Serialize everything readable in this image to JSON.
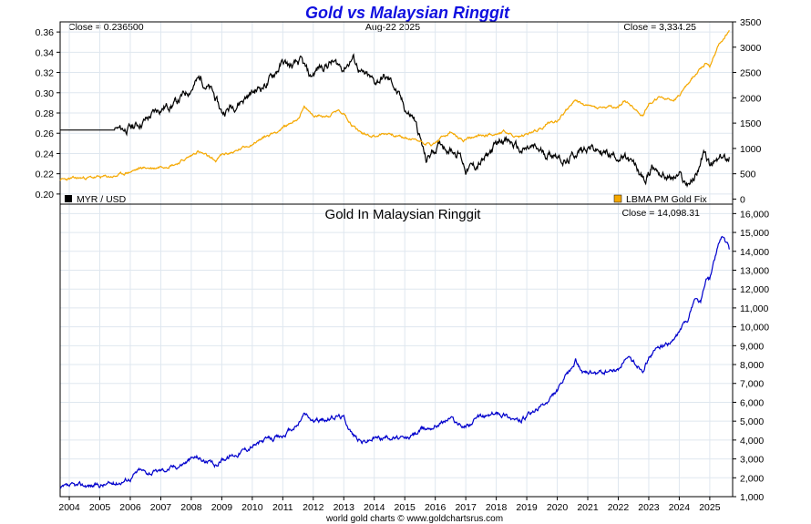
{
  "chart_data": [
    {
      "type": "line",
      "title": "Gold vs Malaysian Ringgit",
      "date_label": "Aug-22  2025",
      "left_close": "Close = 0.236500",
      "right_close": "Close = 3,334.25",
      "left_axis": {
        "ylim": [
          0.19,
          0.37
        ],
        "ticks": [
          "0.20",
          "0.22",
          "0.24",
          "0.26",
          "0.28",
          "0.30",
          "0.32",
          "0.34",
          "0.36"
        ]
      },
      "right_axis": {
        "ylim": [
          -100,
          3500
        ],
        "ticks": [
          "0",
          "500",
          "1000",
          "1500",
          "2000",
          "2500",
          "3000",
          "3500"
        ]
      },
      "grid": true,
      "series": [
        {
          "name": "MYR / USD",
          "axis": "left",
          "color": "#000000",
          "x": [
            2003.7,
            2005.5,
            2005.6,
            2006.0,
            2006.5,
            2007.0,
            2007.5,
            2008.0,
            2008.3,
            2008.7,
            2009.0,
            2009.5,
            2010.0,
            2010.5,
            2011.0,
            2011.3,
            2011.6,
            2011.9,
            2012.2,
            2012.6,
            2013.0,
            2013.3,
            2013.6,
            2014.0,
            2014.3,
            2014.6,
            2014.9,
            2015.1,
            2015.3,
            2015.5,
            2015.7,
            2015.9,
            2016.2,
            2016.5,
            2016.8,
            2017.0,
            2017.3,
            2017.6,
            2017.9,
            2018.2,
            2018.5,
            2018.8,
            2019.2,
            2019.6,
            2020.0,
            2020.3,
            2020.6,
            2021.0,
            2021.3,
            2021.6,
            2022.0,
            2022.3,
            2022.6,
            2022.9,
            2023.1,
            2023.4,
            2023.7,
            2024.0,
            2024.2,
            2024.5,
            2024.8,
            2025.0,
            2025.3,
            2025.64
          ],
          "y": [
            0.2632,
            0.2632,
            0.263,
            0.265,
            0.273,
            0.285,
            0.29,
            0.305,
            0.315,
            0.3,
            0.28,
            0.29,
            0.3,
            0.31,
            0.33,
            0.325,
            0.33,
            0.315,
            0.325,
            0.33,
            0.325,
            0.335,
            0.318,
            0.31,
            0.315,
            0.31,
            0.29,
            0.28,
            0.275,
            0.255,
            0.232,
            0.242,
            0.25,
            0.245,
            0.24,
            0.225,
            0.227,
            0.233,
            0.245,
            0.256,
            0.25,
            0.242,
            0.245,
            0.24,
            0.24,
            0.23,
            0.24,
            0.248,
            0.243,
            0.24,
            0.238,
            0.233,
            0.225,
            0.212,
            0.228,
            0.221,
            0.215,
            0.218,
            0.21,
            0.215,
            0.24,
            0.227,
            0.233,
            0.2365
          ]
        },
        {
          "name": "LBMA PM Gold Fix",
          "axis": "right",
          "color": "#f5a800",
          "x": [
            2003.7,
            2004.5,
            2005.0,
            2005.5,
            2006.0,
            2006.4,
            2006.8,
            2007.0,
            2007.5,
            2008.0,
            2008.2,
            2008.8,
            2009.0,
            2009.5,
            2010.0,
            2010.5,
            2011.0,
            2011.5,
            2011.7,
            2012.0,
            2012.5,
            2012.8,
            2013.0,
            2013.3,
            2013.6,
            2014.0,
            2014.5,
            2015.0,
            2015.5,
            2015.9,
            2016.2,
            2016.5,
            2016.9,
            2017.5,
            2018.0,
            2018.3,
            2018.7,
            2019.0,
            2019.5,
            2019.7,
            2020.0,
            2020.2,
            2020.6,
            2020.9,
            2021.3,
            2021.6,
            2022.0,
            2022.2,
            2022.5,
            2022.8,
            2023.0,
            2023.4,
            2023.8,
            2024.0,
            2024.3,
            2024.7,
            2024.9,
            2025.0,
            2025.3,
            2025.64
          ],
          "y": [
            380,
            420,
            430,
            450,
            540,
            620,
            610,
            650,
            700,
            850,
            950,
            750,
            870,
            950,
            1100,
            1250,
            1400,
            1600,
            1800,
            1650,
            1650,
            1750,
            1700,
            1450,
            1300,
            1250,
            1300,
            1200,
            1150,
            1070,
            1200,
            1320,
            1150,
            1250,
            1300,
            1330,
            1200,
            1280,
            1400,
            1500,
            1550,
            1700,
            1950,
            1850,
            1800,
            1800,
            1800,
            1950,
            1800,
            1650,
            1900,
            2000,
            1950,
            2050,
            2300,
            2600,
            2700,
            2650,
            3050,
            3334.25
          ]
        }
      ]
    },
    {
      "type": "line",
      "title": "Gold In Malaysian Ringgit",
      "close_text": "Close = 14,098.31",
      "ylim": [
        1000,
        16500
      ],
      "yticks": [
        "1,000",
        "2,000",
        "3,000",
        "4,000",
        "5,000",
        "6,000",
        "7,000",
        "8,000",
        "9,000",
        "10,000",
        "11,000",
        "12,000",
        "13,000",
        "14,000",
        "15,000",
        "16,000"
      ],
      "xticks": [
        "2004",
        "2005",
        "2006",
        "2007",
        "2008",
        "2009",
        "2010",
        "2011",
        "2012",
        "2013",
        "2014",
        "2015",
        "2016",
        "2017",
        "2018",
        "2019",
        "2020",
        "2021",
        "2022",
        "2023",
        "2024",
        "2025"
      ],
      "grid": true,
      "series": [
        {
          "color": "#0000cc",
          "x": [
            2003.7,
            2004.0,
            2004.5,
            2005.0,
            2005.5,
            2006.0,
            2006.3,
            2006.5,
            2006.8,
            2007.0,
            2007.5,
            2008.0,
            2008.2,
            2008.8,
            2009.0,
            2009.5,
            2010.0,
            2010.5,
            2011.0,
            2011.5,
            2011.7,
            2012.0,
            2012.5,
            2012.8,
            2013.0,
            2013.3,
            2013.6,
            2014.0,
            2014.5,
            2015.0,
            2015.5,
            2016.0,
            2016.5,
            2016.9,
            2017.5,
            2018.0,
            2018.3,
            2018.7,
            2019.0,
            2019.5,
            2019.7,
            2020.0,
            2020.2,
            2020.6,
            2020.9,
            2021.3,
            2021.6,
            2022.0,
            2022.2,
            2022.5,
            2022.8,
            2023.0,
            2023.4,
            2023.8,
            2024.0,
            2024.3,
            2024.5,
            2024.7,
            2024.9,
            2025.0,
            2025.3,
            2025.4,
            2025.64
          ],
          "y": [
            1400,
            1500,
            1600,
            1600,
            1700,
            2000,
            2400,
            2300,
            2300,
            2400,
            2600,
            3000,
            3100,
            2600,
            3000,
            3300,
            3700,
            4000,
            4200,
            4800,
            5400,
            5000,
            5100,
            5300,
            5200,
            4300,
            3900,
            4100,
            4200,
            4000,
            4500,
            4800,
            5200,
            4700,
            5200,
            5400,
            5400,
            5000,
            5200,
            5800,
            6000,
            6600,
            7100,
            8200,
            7500,
            7500,
            7600,
            7700,
            8300,
            8100,
            7800,
            8400,
            9000,
            9200,
            9700,
            10500,
            11500,
            11300,
            12500,
            12500,
            14500,
            14800,
            14098.31
          ]
        }
      ]
    }
  ],
  "legend": {
    "left_item": "MYR / USD",
    "right_item": "LBMA PM Gold Fix",
    "left_color": "#000000",
    "right_color": "#f5a800"
  },
  "footer": "world gold charts © www.goldchartsrus.com"
}
